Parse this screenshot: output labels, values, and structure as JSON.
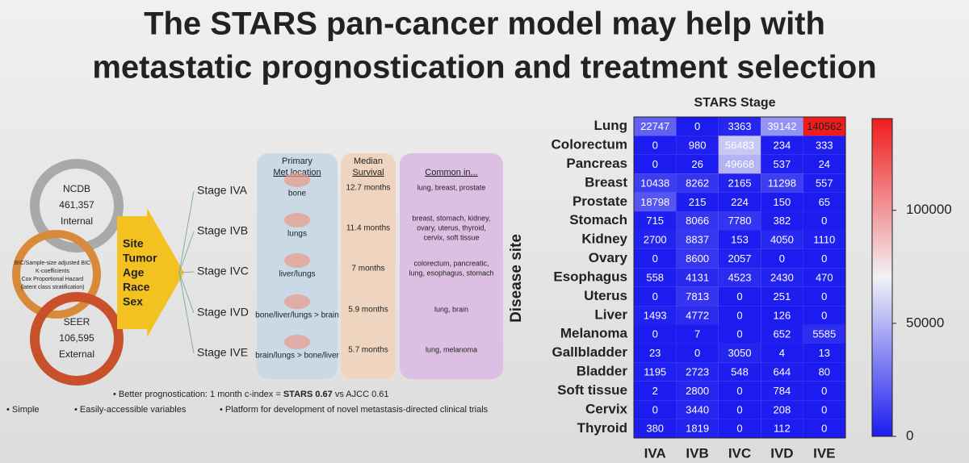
{
  "title": [
    "The STARS pan-cancer model may help with",
    "metastatic prognostication and treatment selection"
  ],
  "diagram": {
    "cohorts": [
      {
        "name": "NCDB",
        "count": "461,357",
        "label": "Internal"
      },
      {
        "name": "SEER",
        "count": "106,595",
        "label": "External"
      }
    ],
    "methods": [
      "BIC/Sample-size adjusted BIC",
      "K-coefficients",
      "Cox Proportional Hazard",
      "(latent class stratification)"
    ],
    "variables": [
      "Site",
      "Tumor",
      "Age",
      "Race",
      "Sex"
    ],
    "headers": {
      "location": [
        "Primary",
        "Met location"
      ],
      "survival": [
        "Median",
        "Survival"
      ],
      "common": "Common in..."
    },
    "stages": [
      {
        "name": "Stage IVA",
        "location": "bone",
        "survival": "12.7 months",
        "common": [
          "lung, breast, prostate"
        ]
      },
      {
        "name": "Stage IVB",
        "location": "lungs",
        "survival": "11.4 months",
        "common": [
          "breast, stomach, kidney,",
          "ovary, uterus, thyroid,",
          "cervix, soft tissue"
        ]
      },
      {
        "name": "Stage IVC",
        "location": "liver/lungs",
        "survival": "7 months",
        "common": [
          "colorectum, pancreatic,",
          "lung, esophagus, stomach"
        ]
      },
      {
        "name": "Stage IVD",
        "location": "bone/liver/lungs > brain",
        "survival": "5.9 months",
        "common": [
          "lung, brain"
        ]
      },
      {
        "name": "Stage IVE",
        "location": "brain/lungs > bone/liver",
        "survival": "5.7 months",
        "common": [
          "lung, melanoma"
        ]
      }
    ]
  },
  "bullets": {
    "main": {
      "prefix": "Better prognostication: 1 month c-index = ",
      "bold": "STARS 0.67",
      "suffix": " vs AJCC 0.61"
    },
    "items": [
      "Simple",
      "Easily-accessible variables",
      "Platform for development of novel metastasis-directed clinical trials"
    ]
  },
  "chart_data": {
    "type": "heatmap",
    "title": "STARS Stage",
    "y_label": "Disease site",
    "columns": [
      "IVA",
      "IVB",
      "IVC",
      "IVD",
      "IVE"
    ],
    "rows": [
      "Lung",
      "Colorectum",
      "Pancreas",
      "Breast",
      "Prostate",
      "Stomach",
      "Kidney",
      "Ovary",
      "Esophagus",
      "Uterus",
      "Liver",
      "Melanoma",
      "Gallbladder",
      "Bladder",
      "Soft tissue",
      "Cervix",
      "Thyroid"
    ],
    "values": [
      [
        22747,
        0,
        3363,
        39142,
        140562
      ],
      [
        0,
        980,
        56483,
        234,
        333
      ],
      [
        0,
        26,
        49668,
        537,
        24
      ],
      [
        10438,
        8262,
        2165,
        11298,
        557
      ],
      [
        18798,
        215,
        224,
        150,
        65
      ],
      [
        715,
        8066,
        7780,
        382,
        0
      ],
      [
        2700,
        8837,
        153,
        4050,
        1110
      ],
      [
        0,
        8600,
        2057,
        0,
        0
      ],
      [
        558,
        4131,
        4523,
        2430,
        470
      ],
      [
        0,
        7813,
        0,
        251,
        0
      ],
      [
        1493,
        4772,
        0,
        126,
        0
      ],
      [
        0,
        7,
        0,
        652,
        5585
      ],
      [
        23,
        0,
        3050,
        4,
        13
      ],
      [
        1195,
        2723,
        548,
        644,
        80
      ],
      [
        2,
        2800,
        0,
        784,
        0
      ],
      [
        0,
        3440,
        0,
        208,
        0
      ],
      [
        380,
        1819,
        0,
        112,
        0
      ]
    ],
    "zlim": [
      0,
      140562
    ],
    "zticks": [
      0,
      50000,
      100000
    ],
    "colorscale": [
      "#1c1cf0",
      "#f2f2f6",
      "#f01c1c"
    ]
  }
}
